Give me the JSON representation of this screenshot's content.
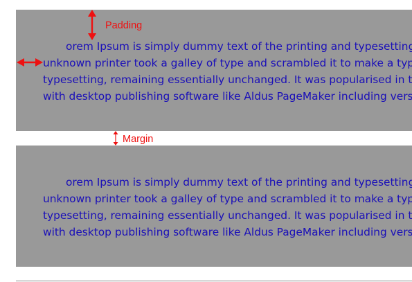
{
  "annotations": {
    "padding_label": "Padding",
    "margin_label": "Margin"
  },
  "example_boxes": [
    {
      "lines": [
        "orem Ipsum is simply dummy text of the printing and typesetting industry. Lorem Ipsum has",
        "unknown printer took a galley of type and scrambled it to make a type specimen book. It has",
        "typesetting, remaining essentially unchanged. It was popularised in the 1960s with the release of",
        "with desktop publishing software like Aldus PageMaker including versions of Lorem Ipsum."
      ]
    },
    {
      "lines": [
        "orem Ipsum is simply dummy text of the printing and typesetting industry. Lorem Ipsum has",
        "unknown printer took a galley of type and scrambled it to make a type specimen book. It has",
        "typesetting, remaining essentially unchanged. It was popularised in the 1960s with the release of",
        "with desktop publishing software like Aldus PageMaker including versions of Lorem Ipsum."
      ]
    }
  ],
  "colors": {
    "box_background": "#999999",
    "body_text": "#1a0fb8",
    "annotation": "#ee1111"
  }
}
